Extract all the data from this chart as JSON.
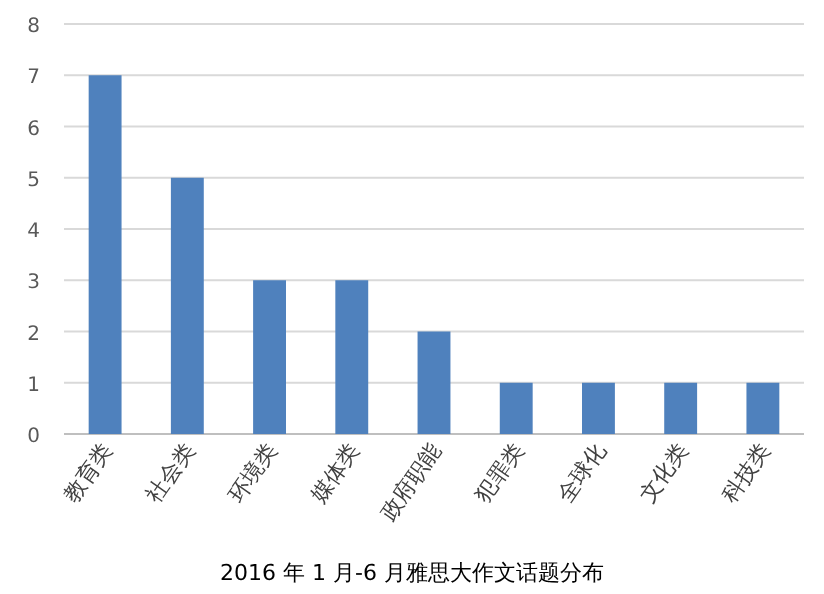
{
  "chart_data": {
    "type": "bar",
    "title": "2016 年 1 月-6 月雅思大作文话题分布",
    "categories": [
      "教育类",
      "社会类",
      "环境类",
      "媒体类",
      "政府职能",
      "犯罪类",
      "全球化",
      "文化类",
      "科技类"
    ],
    "values": [
      7,
      5,
      3,
      3,
      2,
      1,
      1,
      1,
      1
    ],
    "color": "#4f81bd",
    "ylim": [
      0,
      8
    ],
    "yticks": [
      0,
      1,
      2,
      3,
      4,
      5,
      6,
      7,
      8
    ],
    "grid": "y"
  }
}
